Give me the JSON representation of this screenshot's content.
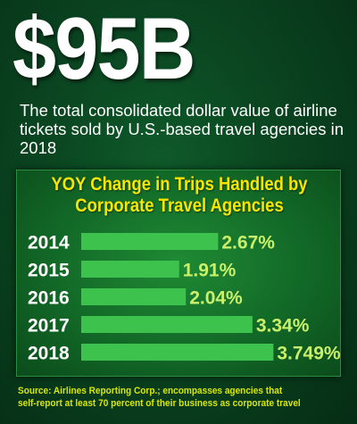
{
  "headline": "$95B",
  "subhead": "The total consolidated dollar value of airline tickets sold by U.S.-based travel agencies in 2018",
  "source": {
    "line1": "Source: Airlines Reporting Corp.; encompasses agencies that",
    "line2": "self-report at least 70 percent of their business as corporate travel"
  },
  "colors": {
    "bar": "#3ec24e",
    "label": "#c9f06a",
    "title": "#f6e600",
    "source": "#d8e800"
  },
  "chart_data": {
    "type": "bar",
    "orientation": "horizontal",
    "title_line1": "YOY Change in Trips Handled by",
    "title_line2": "Corporate Travel Agencies",
    "categories": [
      "2014",
      "2015",
      "2016",
      "2017",
      "2018"
    ],
    "values": [
      2.67,
      1.91,
      2.04,
      3.34,
      3.749
    ],
    "value_labels": [
      "2.67%",
      "1.91%",
      "2.04%",
      "3.34%",
      "3.749%"
    ],
    "xlim": [
      0,
      4.7
    ],
    "grid": false,
    "legend": "none"
  }
}
